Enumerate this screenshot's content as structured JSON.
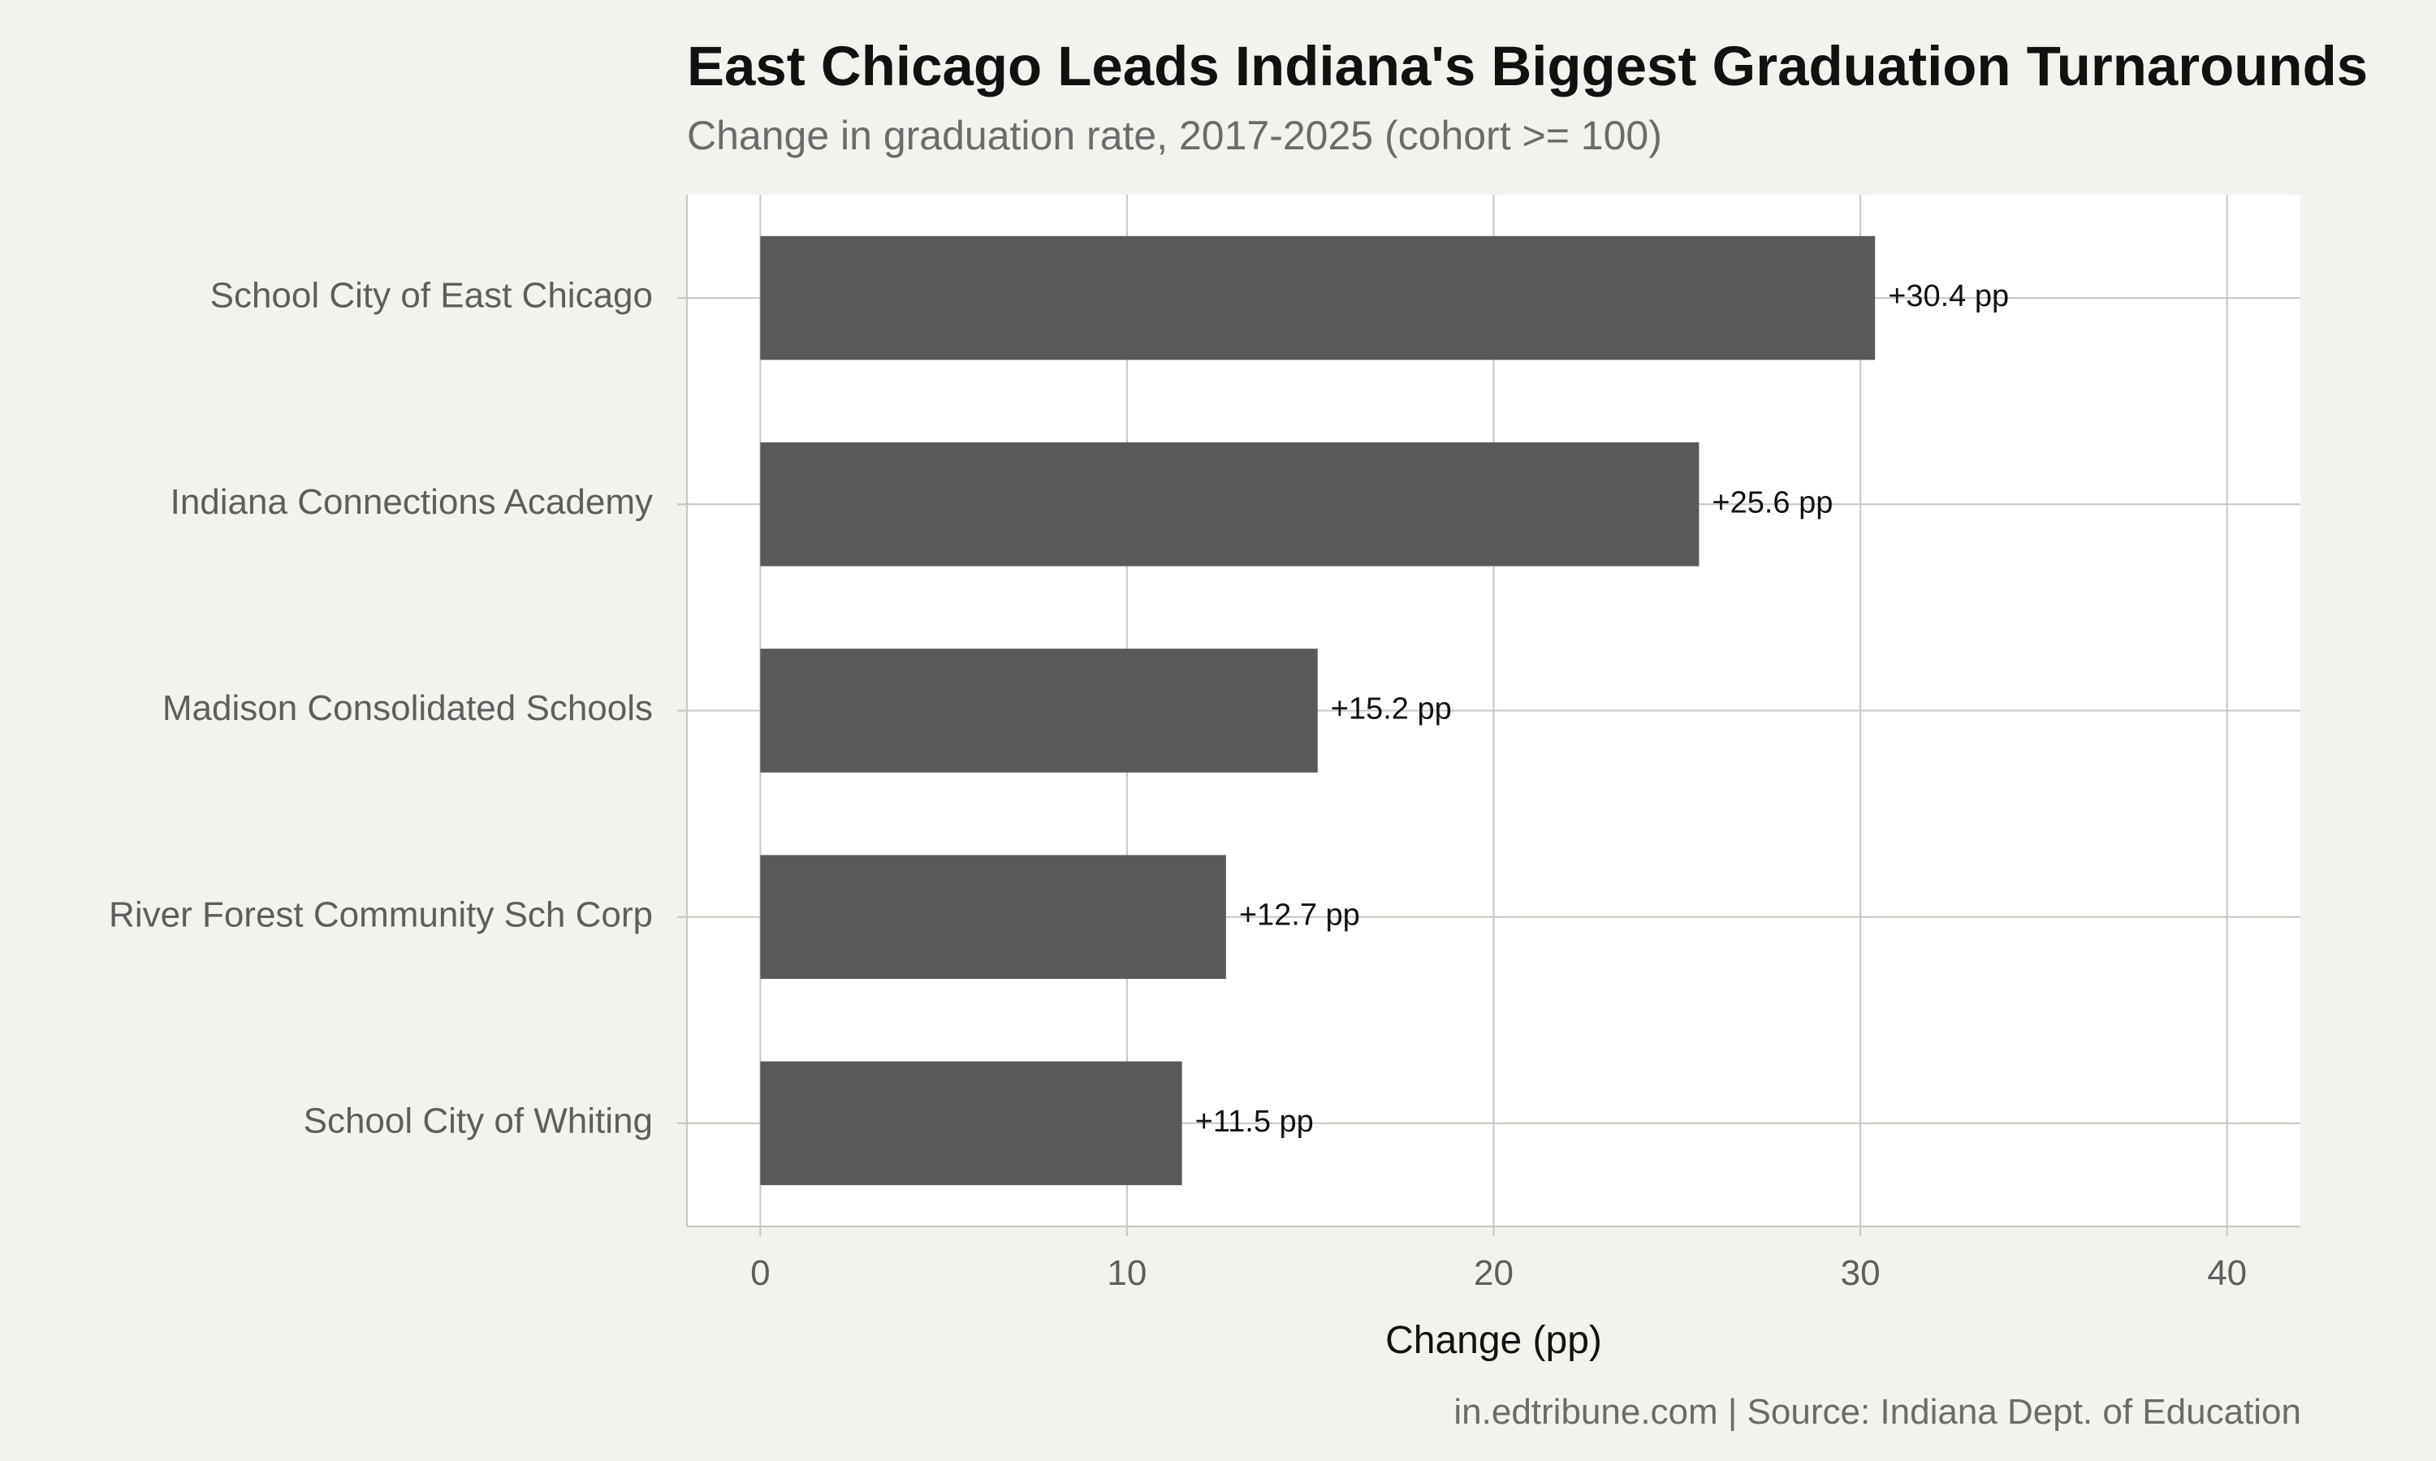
{
  "chart_data": {
    "type": "bar",
    "orientation": "horizontal",
    "title": "East Chicago Leads Indiana's Biggest Graduation Turnarounds",
    "subtitle": "Change in graduation rate, 2017-2025 (cohort >= 100)",
    "caption": "in.edtribune.com | Source: Indiana Dept. of Education",
    "xlabel": "Change (pp)",
    "ylabel": "",
    "xlim": [
      -2,
      42
    ],
    "xticks": [
      0,
      10,
      20,
      30,
      40
    ],
    "grid": true,
    "categories": [
      "School City of East Chicago",
      "Indiana Connections Academy",
      "Madison Consolidated Schools",
      "River Forest Community Sch Corp",
      "School City of Whiting"
    ],
    "values": [
      30.4,
      25.6,
      15.2,
      12.7,
      11.5
    ],
    "data_labels": [
      "+30.4 pp",
      "+25.6 pp",
      "+15.2 pp",
      "+12.7 pp",
      "+11.5 pp"
    ],
    "colors": {
      "bar": "#595959",
      "panel": "#ffffff",
      "background": "#f4f2ed",
      "grid": "#c9c6bf"
    }
  }
}
